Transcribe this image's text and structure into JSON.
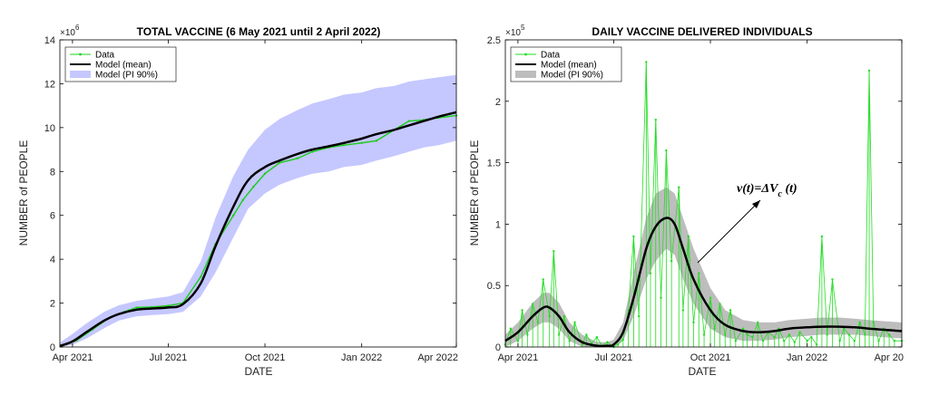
{
  "chart_data": [
    {
      "type": "line",
      "title": "TOTAL VACCINE (6 May 2021 until 2 April 2022)",
      "xlabel": "DATE",
      "ylabel": "NUMBER of PEOPLE",
      "y_exponent_label": "×10",
      "y_exponent_power": "6",
      "x_domain": [
        "2021-03-20",
        "2022-04-01"
      ],
      "ylim": [
        0,
        14
      ],
      "x_ticks": [
        {
          "date": "2021-04-01",
          "label": "Apr 2021"
        },
        {
          "date": "2021-07-01",
          "label": "Jul 2021"
        },
        {
          "date": "2021-10-01",
          "label": "Oct 2021"
        },
        {
          "date": "2022-01-01",
          "label": "Jan 2022"
        },
        {
          "date": "2022-04-01",
          "label": "Apr 2022"
        }
      ],
      "y_ticks": [
        0,
        2,
        4,
        6,
        8,
        10,
        12,
        14
      ],
      "legend": {
        "position": "top-left",
        "entries": [
          "Data",
          "Model (mean)",
          "Model (PI 90%)"
        ]
      },
      "colors": {
        "data": "#22cc22",
        "model": "#000000",
        "band": "#c5c7ff"
      },
      "series": [
        {
          "name": "Data",
          "x": [
            "2021-03-22",
            "2021-04-05",
            "2021-04-20",
            "2021-05-05",
            "2021-05-20",
            "2021-06-01",
            "2021-06-15",
            "2021-07-01",
            "2021-07-15",
            "2021-08-01",
            "2021-08-15",
            "2021-09-01",
            "2021-09-10",
            "2021-09-20",
            "2021-10-01",
            "2021-10-15",
            "2021-11-01",
            "2021-11-15",
            "2021-12-01",
            "2021-12-15",
            "2022-01-01",
            "2022-01-15",
            "2022-02-01",
            "2022-02-15",
            "2022-03-01",
            "2022-03-15",
            "2022-04-01"
          ],
          "y": [
            0.05,
            0.3,
            0.8,
            1.3,
            1.6,
            1.8,
            1.82,
            1.88,
            2.0,
            3.2,
            4.7,
            6.0,
            6.7,
            7.3,
            7.9,
            8.4,
            8.6,
            8.9,
            9.1,
            9.2,
            9.3,
            9.4,
            9.9,
            10.3,
            10.35,
            10.45,
            10.55
          ]
        },
        {
          "name": "Model (mean)",
          "x": [
            "2021-03-20",
            "2021-04-01",
            "2021-04-15",
            "2021-05-01",
            "2021-05-15",
            "2021-06-01",
            "2021-06-15",
            "2021-07-01",
            "2021-07-15",
            "2021-08-01",
            "2021-08-15",
            "2021-09-01",
            "2021-09-15",
            "2021-10-01",
            "2021-10-15",
            "2021-11-01",
            "2021-11-15",
            "2021-12-01",
            "2021-12-15",
            "2022-01-01",
            "2022-01-15",
            "2022-02-01",
            "2022-02-15",
            "2022-03-01",
            "2022-03-15",
            "2022-04-01"
          ],
          "y": [
            0.05,
            0.25,
            0.7,
            1.2,
            1.5,
            1.7,
            1.75,
            1.8,
            1.95,
            2.9,
            4.6,
            6.4,
            7.6,
            8.2,
            8.5,
            8.8,
            9.0,
            9.15,
            9.3,
            9.5,
            9.7,
            9.9,
            10.1,
            10.3,
            10.5,
            10.7
          ]
        },
        {
          "name": "Model (PI 90%)",
          "x": [
            "2021-03-20",
            "2021-04-01",
            "2021-04-15",
            "2021-05-01",
            "2021-05-15",
            "2021-06-01",
            "2021-06-15",
            "2021-07-01",
            "2021-07-15",
            "2021-08-01",
            "2021-08-15",
            "2021-09-01",
            "2021-09-15",
            "2021-10-01",
            "2021-10-15",
            "2021-11-01",
            "2021-11-15",
            "2021-12-01",
            "2021-12-15",
            "2022-01-01",
            "2022-01-15",
            "2022-02-01",
            "2022-02-15",
            "2022-03-01",
            "2022-03-15",
            "2022-04-01"
          ],
          "lower": [
            0.0,
            0.1,
            0.4,
            0.85,
            1.2,
            1.4,
            1.45,
            1.5,
            1.6,
            2.3,
            3.4,
            5.0,
            6.3,
            7.0,
            7.4,
            7.7,
            7.9,
            8.0,
            8.2,
            8.3,
            8.5,
            8.7,
            8.9,
            9.1,
            9.2,
            9.4
          ],
          "upper": [
            0.2,
            0.6,
            1.1,
            1.6,
            1.9,
            2.1,
            2.2,
            2.3,
            2.5,
            3.9,
            5.9,
            7.8,
            9.0,
            9.9,
            10.4,
            10.8,
            11.1,
            11.3,
            11.5,
            11.6,
            11.8,
            11.9,
            12.1,
            12.2,
            12.3,
            12.4
          ]
        }
      ]
    },
    {
      "type": "line",
      "title": "DAILY VACCINE DELIVERED INDIVIDUALS",
      "xlabel": "DATE",
      "ylabel": "NUMBER of PEOPLE",
      "y_exponent_label": "×10",
      "y_exponent_power": "5",
      "x_domain": [
        "2021-03-20",
        "2022-04-01"
      ],
      "ylim": [
        0,
        2.5
      ],
      "x_ticks": [
        {
          "date": "2021-04-01",
          "label": "Apr 2021"
        },
        {
          "date": "2021-07-01",
          "label": "Jul 2021"
        },
        {
          "date": "2021-10-01",
          "label": "Oct 2021"
        },
        {
          "date": "2022-01-01",
          "label": "Jan 2022"
        },
        {
          "date": "2022-04-01",
          "label": "Apr 20"
        }
      ],
      "y_ticks": [
        0,
        0.5,
        1,
        1.5,
        2,
        2.5
      ],
      "legend": {
        "position": "top-left",
        "entries": [
          "Data",
          "Model (mean)",
          "Model (PI 90%)"
        ]
      },
      "annotation": "v(t)=ΔV_c (t)",
      "annotation_lead": "v(t)=ΔV",
      "annotation_sub": "c",
      "annotation_tail": " (t)",
      "colors": {
        "data": "#22dd22",
        "model": "#000000",
        "band": "#bdbdbd"
      },
      "series": [
        {
          "name": "Data",
          "x": [
            "2021-03-20",
            "2021-03-25",
            "2021-04-01",
            "2021-04-05",
            "2021-04-10",
            "2021-04-15",
            "2021-04-20",
            "2021-04-25",
            "2021-05-01",
            "2021-05-05",
            "2021-05-10",
            "2021-05-15",
            "2021-05-20",
            "2021-05-25",
            "2021-06-01",
            "2021-06-05",
            "2021-06-10",
            "2021-06-15",
            "2021-06-20",
            "2021-06-25",
            "2021-07-01",
            "2021-07-05",
            "2021-07-10",
            "2021-07-15",
            "2021-07-20",
            "2021-07-25",
            "2021-08-01",
            "2021-08-05",
            "2021-08-10",
            "2021-08-15",
            "2021-08-20",
            "2021-08-25",
            "2021-09-01",
            "2021-09-05",
            "2021-09-10",
            "2021-09-15",
            "2021-09-20",
            "2021-09-25",
            "2021-10-01",
            "2021-10-05",
            "2021-10-10",
            "2021-10-15",
            "2021-10-20",
            "2021-10-25",
            "2021-11-01",
            "2021-11-05",
            "2021-11-10",
            "2021-11-15",
            "2021-11-20",
            "2021-11-25",
            "2021-12-01",
            "2021-12-05",
            "2021-12-10",
            "2021-12-15",
            "2021-12-20",
            "2021-12-25",
            "2022-01-01",
            "2022-01-05",
            "2022-01-10",
            "2022-01-15",
            "2022-01-20",
            "2022-01-25",
            "2022-02-01",
            "2022-02-05",
            "2022-02-10",
            "2022-02-15",
            "2022-02-20",
            "2022-02-25",
            "2022-03-01",
            "2022-03-05",
            "2022-03-10",
            "2022-03-15",
            "2022-03-20",
            "2022-03-25",
            "2022-04-01"
          ],
          "y": [
            0.02,
            0.15,
            0.05,
            0.3,
            0.1,
            0.35,
            0.2,
            0.55,
            0.25,
            0.78,
            0.1,
            0.25,
            0.05,
            0.2,
            0.02,
            0.1,
            0.03,
            0.08,
            0.01,
            0.04,
            0.0,
            0.02,
            0.06,
            0.3,
            0.9,
            0.25,
            2.32,
            0.6,
            1.85,
            0.4,
            1.6,
            0.7,
            1.3,
            0.3,
            0.9,
            0.2,
            0.6,
            0.1,
            0.4,
            0.15,
            0.35,
            0.1,
            0.3,
            0.05,
            0.15,
            0.1,
            0.08,
            0.2,
            0.05,
            0.12,
            0.08,
            0.15,
            0.05,
            0.1,
            0.04,
            0.12,
            0.05,
            0.08,
            0.02,
            0.9,
            0.1,
            0.55,
            0.05,
            0.15,
            0.1,
            0.05,
            0.2,
            0.1,
            2.25,
            0.2,
            0.05,
            0.15,
            0.1,
            0.05,
            0.05
          ]
        },
        {
          "name": "Model (mean)",
          "x": [
            "2021-03-20",
            "2021-04-01",
            "2021-04-15",
            "2021-04-25",
            "2021-05-01",
            "2021-05-10",
            "2021-05-20",
            "2021-06-01",
            "2021-06-15",
            "2021-06-25",
            "2021-07-01",
            "2021-07-10",
            "2021-07-20",
            "2021-08-01",
            "2021-08-10",
            "2021-08-20",
            "2021-08-28",
            "2021-09-05",
            "2021-09-15",
            "2021-10-01",
            "2021-10-15",
            "2021-11-01",
            "2021-11-15",
            "2021-12-01",
            "2021-12-15",
            "2022-01-01",
            "2022-01-15",
            "2022-02-01",
            "2022-02-15",
            "2022-03-01",
            "2022-03-15",
            "2022-04-01"
          ],
          "y": [
            0.05,
            0.12,
            0.25,
            0.32,
            0.32,
            0.25,
            0.12,
            0.04,
            0.01,
            0.01,
            0.02,
            0.12,
            0.4,
            0.8,
            0.98,
            1.05,
            1.0,
            0.8,
            0.55,
            0.3,
            0.18,
            0.13,
            0.12,
            0.13,
            0.15,
            0.16,
            0.165,
            0.165,
            0.16,
            0.15,
            0.14,
            0.13
          ]
        },
        {
          "name": "Model (PI 90%)",
          "x": [
            "2021-03-20",
            "2021-04-01",
            "2021-04-15",
            "2021-04-25",
            "2021-05-01",
            "2021-05-10",
            "2021-05-20",
            "2021-06-01",
            "2021-06-15",
            "2021-06-25",
            "2021-07-01",
            "2021-07-10",
            "2021-07-20",
            "2021-08-01",
            "2021-08-10",
            "2021-08-20",
            "2021-08-28",
            "2021-09-05",
            "2021-09-15",
            "2021-10-01",
            "2021-10-15",
            "2021-11-01",
            "2021-11-15",
            "2021-12-01",
            "2021-12-15",
            "2022-01-01",
            "2022-01-15",
            "2022-02-01",
            "2022-02-15",
            "2022-03-01",
            "2022-03-15",
            "2022-04-01"
          ],
          "lower": [
            0.0,
            0.05,
            0.15,
            0.2,
            0.2,
            0.15,
            0.05,
            0.0,
            0.0,
            0.0,
            0.0,
            0.05,
            0.25,
            0.55,
            0.7,
            0.8,
            0.75,
            0.55,
            0.35,
            0.15,
            0.08,
            0.05,
            0.05,
            0.06,
            0.08,
            0.09,
            0.1,
            0.1,
            0.1,
            0.09,
            0.08,
            0.07
          ],
          "upper": [
            0.1,
            0.2,
            0.36,
            0.44,
            0.44,
            0.36,
            0.2,
            0.1,
            0.04,
            0.04,
            0.06,
            0.2,
            0.6,
            1.05,
            1.25,
            1.3,
            1.25,
            1.05,
            0.8,
            0.48,
            0.3,
            0.22,
            0.2,
            0.2,
            0.22,
            0.23,
            0.24,
            0.24,
            0.23,
            0.22,
            0.21,
            0.2
          ]
        }
      ]
    }
  ]
}
